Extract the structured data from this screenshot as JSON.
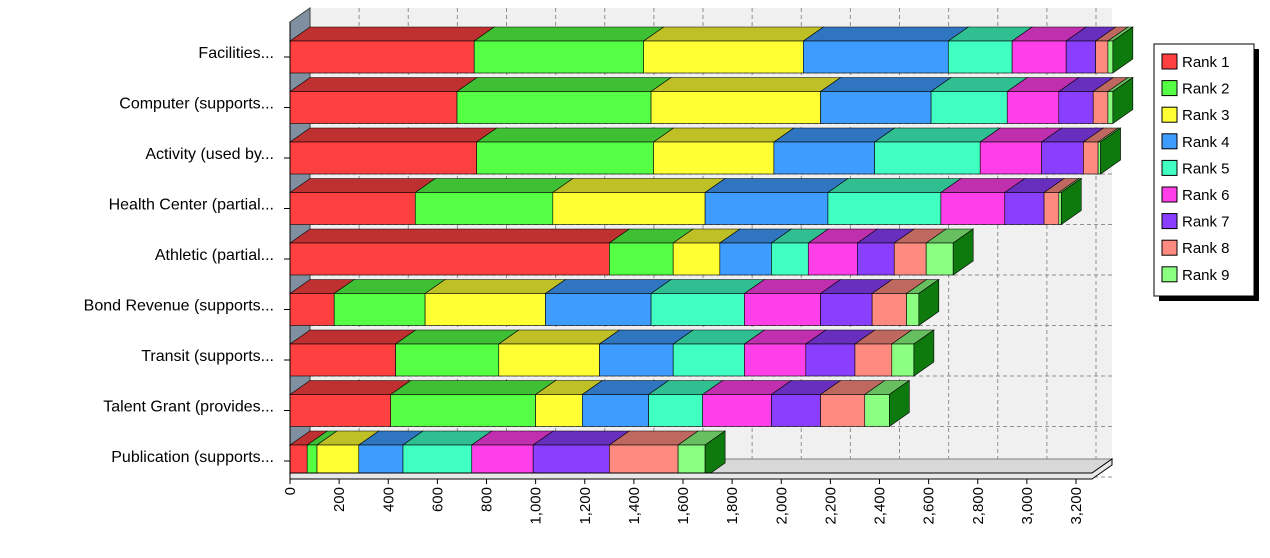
{
  "chart_data": {
    "type": "bar",
    "orientation": "horizontal",
    "stacked": true,
    "style": "3d",
    "categories": [
      "Facilities...",
      "Computer (supports...",
      "Activity (used by...",
      "Health Center (partial...",
      "Athletic (partial...",
      "Bond Revenue (supports...",
      "Transit (supports...",
      "Talent Grant (provides...",
      "Publication (supports..."
    ],
    "series": [
      {
        "name": "Rank 1",
        "color": "#ff4040",
        "values": [
          750,
          680,
          760,
          510,
          1300,
          180,
          430,
          410,
          70
        ]
      },
      {
        "name": "Rank 2",
        "color": "#54ff44",
        "values": [
          690,
          790,
          720,
          560,
          260,
          370,
          420,
          590,
          40
        ]
      },
      {
        "name": "Rank 3",
        "color": "#ffff33",
        "values": [
          650,
          690,
          490,
          620,
          190,
          490,
          410,
          190,
          170
        ]
      },
      {
        "name": "Rank 4",
        "color": "#3f9cff",
        "values": [
          590,
          450,
          410,
          500,
          210,
          430,
          300,
          270,
          180
        ]
      },
      {
        "name": "Rank 5",
        "color": "#40ffc0",
        "values": [
          260,
          310,
          430,
          460,
          150,
          380,
          290,
          220,
          280
        ]
      },
      {
        "name": "Rank 6",
        "color": "#ff3fe8",
        "values": [
          220,
          210,
          250,
          260,
          200,
          310,
          250,
          280,
          250
        ]
      },
      {
        "name": "Rank 7",
        "color": "#8a3fff",
        "values": [
          120,
          140,
          170,
          160,
          150,
          210,
          200,
          200,
          310
        ]
      },
      {
        "name": "Rank 8",
        "color": "#ff8a80",
        "values": [
          50,
          60,
          60,
          60,
          130,
          140,
          150,
          180,
          280
        ]
      },
      {
        "name": "Rank 9",
        "color": "#8aff80",
        "values": [
          20,
          20,
          10,
          10,
          110,
          50,
          90,
          100,
          110
        ]
      }
    ],
    "x_ticks": [
      0,
      200,
      400,
      600,
      800,
      1000,
      1200,
      1400,
      1600,
      1800,
      2000,
      2200,
      2400,
      2600,
      2800,
      3000,
      3200
    ],
    "x_tick_labels": [
      "0",
      "200",
      "400",
      "600",
      "800",
      "1,000",
      "1,200",
      "1,400",
      "1,600",
      "1,800",
      "2,000",
      "2,200",
      "2,400",
      "2,600",
      "2,800",
      "3,000",
      "3,200"
    ],
    "xlim": [
      0,
      3400
    ],
    "grid": true,
    "legend_position": "right",
    "title": "",
    "xlabel": "",
    "ylabel": ""
  }
}
